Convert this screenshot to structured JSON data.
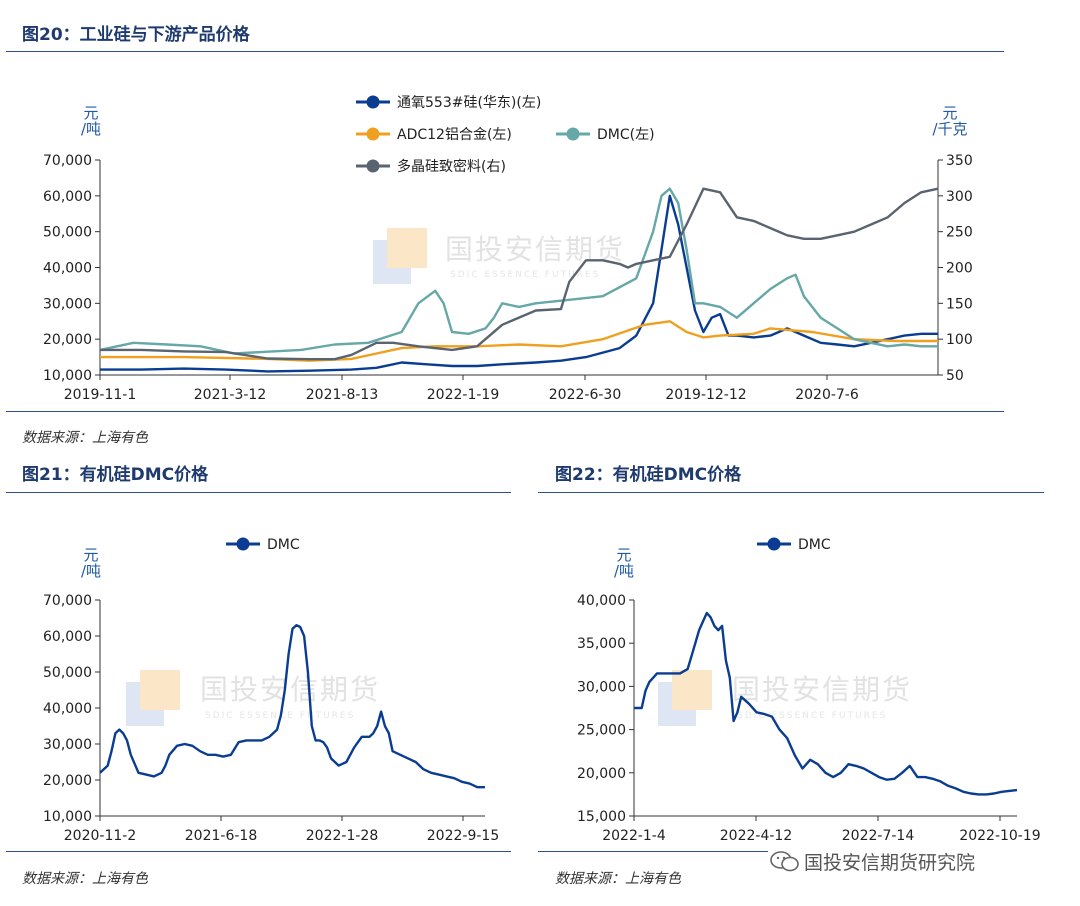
{
  "fig20": {
    "title": "图20：工业硅与下游产品价格",
    "left_unit": "元\n/吨",
    "right_unit": "元\n/千克",
    "source": "数据来源：上海有色",
    "chart_data": {
      "type": "line",
      "title": "图20：工业硅与下游产品价格",
      "x_tick_labels": [
        "2019-11-1",
        "2021-3-12",
        "2021-8-13",
        "2022-1-19",
        "2022-6-30",
        "2019-12-12",
        "2020-7-6"
      ],
      "y_left_ticks": [
        "10,000",
        "20,000",
        "30,000",
        "40,000",
        "50,000",
        "60,000",
        "70,000"
      ],
      "y_right_ticks": [
        "50",
        "100",
        "150",
        "200",
        "250",
        "300",
        "350"
      ],
      "ylim_left": [
        10000,
        70000
      ],
      "ylim_right": [
        50,
        350
      ],
      "x_range": [
        0,
        100
      ],
      "series": [
        {
          "name": "通氧553#硅(华东)(左)",
          "axis": "left",
          "color": "#0a3d91",
          "x": [
            0,
            5,
            10,
            15,
            20,
            25,
            30,
            33,
            36,
            39,
            42,
            45,
            48,
            52,
            55,
            58,
            62,
            64,
            66,
            67,
            68,
            69,
            70,
            71,
            72,
            73,
            74,
            75,
            76,
            78,
            80,
            82,
            84,
            86,
            88,
            90,
            92,
            94,
            96,
            98,
            100
          ],
          "y": [
            11500,
            11500,
            11800,
            11500,
            11000,
            11200,
            11500,
            12000,
            13500,
            13000,
            12500,
            12500,
            13000,
            13500,
            14000,
            15000,
            17500,
            21000,
            30000,
            45000,
            60000,
            52000,
            40000,
            28000,
            22000,
            26000,
            27000,
            21000,
            21000,
            20500,
            21000,
            23000,
            21000,
            19000,
            18500,
            18000,
            19000,
            20000,
            21000,
            21500,
            21500
          ]
        },
        {
          "name": "ADC12铝合金(左)",
          "axis": "left",
          "color": "#f0a020",
          "x": [
            0,
            10,
            20,
            25,
            30,
            33,
            36,
            40,
            45,
            50,
            55,
            60,
            65,
            68,
            70,
            72,
            74,
            78,
            80,
            85,
            90,
            95,
            100
          ],
          "y": [
            15000,
            15000,
            14500,
            14000,
            14500,
            16000,
            17500,
            18000,
            18000,
            18500,
            18000,
            20000,
            24000,
            25000,
            22000,
            20500,
            21000,
            21500,
            23000,
            22000,
            20000,
            19500,
            19500
          ]
        },
        {
          "name": "DMC(左)",
          "axis": "left",
          "color": "#66a7a8",
          "x": [
            0,
            4,
            8,
            12,
            16,
            20,
            24,
            28,
            32,
            36,
            38,
            40,
            41,
            42,
            44,
            46,
            47,
            48,
            50,
            52,
            56,
            60,
            64,
            66,
            67,
            68,
            69,
            70,
            71,
            72,
            74,
            76,
            78,
            80,
            82,
            83,
            84,
            86,
            88,
            90,
            92,
            94,
            96,
            98,
            100
          ],
          "y": [
            17000,
            19000,
            18500,
            18000,
            16000,
            16500,
            17000,
            18500,
            19000,
            22000,
            30000,
            33500,
            30000,
            22000,
            21500,
            23000,
            26000,
            30000,
            29000,
            30000,
            31000,
            32000,
            37000,
            50000,
            60000,
            62000,
            58000,
            45000,
            30000,
            30000,
            29000,
            26000,
            30000,
            34000,
            37000,
            38000,
            32000,
            26000,
            23000,
            20000,
            19000,
            18000,
            18500,
            18000,
            18000
          ]
        },
        {
          "name": "多晶硅致密料(右)",
          "axis": "right",
          "color": "#5a6470",
          "x": [
            0,
            5,
            10,
            15,
            20,
            25,
            28,
            30,
            33,
            35,
            38,
            42,
            45,
            48,
            52,
            55,
            56,
            58,
            60,
            62,
            63,
            64,
            66,
            68,
            70,
            72,
            74,
            76,
            78,
            80,
            82,
            84,
            86,
            88,
            90,
            92,
            94,
            96,
            98,
            100
          ],
          "y": [
            85,
            85,
            83,
            82,
            73,
            72,
            72,
            78,
            95,
            95,
            90,
            85,
            90,
            120,
            140,
            142,
            180,
            210,
            210,
            205,
            200,
            205,
            210,
            215,
            260,
            310,
            305,
            270,
            265,
            255,
            245,
            240,
            240,
            245,
            250,
            260,
            270,
            290,
            305,
            310
          ]
        }
      ]
    }
  },
  "fig21": {
    "title": "图21：有机硅DMC价格",
    "unit": "元\n/吨",
    "source": "数据来源：上海有色",
    "chart_data": {
      "type": "line",
      "title": "图21：有机硅DMC价格",
      "x_tick_labels": [
        "2020-11-2",
        "2021-6-18",
        "2022-1-28",
        "2022-9-15"
      ],
      "y_ticks": [
        "10,000",
        "20,000",
        "30,000",
        "40,000",
        "50,000",
        "60,000",
        "70,000"
      ],
      "ylim": [
        10000,
        70000
      ],
      "x_range": [
        0,
        100
      ],
      "series": [
        {
          "name": "DMC",
          "color": "#0a3d91",
          "x": [
            0,
            2,
            3,
            4,
            5,
            6,
            7,
            8,
            10,
            12,
            14,
            16,
            17,
            18,
            20,
            22,
            24,
            26,
            28,
            30,
            32,
            34,
            36,
            38,
            40,
            42,
            44,
            46,
            47,
            48,
            49,
            50,
            51,
            52,
            53,
            54,
            55,
            56,
            57,
            58,
            59,
            60,
            62,
            64,
            66,
            68,
            70,
            71,
            72,
            73,
            74,
            75,
            76,
            78,
            80,
            82,
            84,
            86,
            88,
            90,
            92,
            94,
            96,
            98,
            100
          ],
          "y": [
            22000,
            24000,
            28000,
            33000,
            34000,
            33000,
            31000,
            27000,
            22000,
            21500,
            21000,
            22000,
            24000,
            27000,
            29500,
            30000,
            29500,
            28000,
            27000,
            27000,
            26500,
            27000,
            30500,
            31000,
            31000,
            31000,
            32000,
            34000,
            38000,
            45000,
            55000,
            62000,
            63000,
            62500,
            60000,
            50000,
            35000,
            31000,
            31000,
            30500,
            29000,
            26000,
            24000,
            25000,
            29000,
            32000,
            32000,
            33000,
            35000,
            39000,
            35000,
            33000,
            28000,
            27000,
            26000,
            25000,
            23000,
            22000,
            21500,
            21000,
            20500,
            19500,
            19000,
            18000,
            18000
          ]
        }
      ]
    }
  },
  "fig22": {
    "title": "图22：有机硅DMC价格",
    "unit": "元\n/吨",
    "source": "数据来源：上海有色",
    "credit": "国投安信期货研究院",
    "chart_data": {
      "type": "line",
      "title": "图22：有机硅DMC价格",
      "x_tick_labels": [
        "2022-1-4",
        "2022-4-12",
        "2022-7-14",
        "2022-10-19"
      ],
      "y_ticks": [
        "15,000",
        "20,000",
        "25,000",
        "30,000",
        "35,000",
        "40,000"
      ],
      "ylim": [
        15000,
        40000
      ],
      "x_range": [
        0,
        100
      ],
      "series": [
        {
          "name": "DMC",
          "color": "#0a3d91",
          "x": [
            0,
            2,
            3,
            4,
            6,
            8,
            10,
            12,
            14,
            15,
            16,
            17,
            18,
            19,
            20,
            21,
            22,
            23,
            24,
            25,
            26,
            27,
            28,
            30,
            32,
            34,
            36,
            38,
            40,
            42,
            44,
            46,
            48,
            50,
            52,
            54,
            56,
            58,
            60,
            62,
            64,
            66,
            68,
            70,
            72,
            74,
            76,
            78,
            80,
            82,
            84,
            86,
            88,
            90,
            92,
            94,
            96,
            98,
            100
          ],
          "y": [
            27500,
            27500,
            29500,
            30500,
            31500,
            31500,
            31500,
            31500,
            32000,
            33500,
            35000,
            36500,
            37500,
            38500,
            38000,
            37000,
            36500,
            37000,
            33000,
            31000,
            26000,
            27000,
            28800,
            28000,
            27000,
            26800,
            26500,
            25000,
            24000,
            22000,
            20500,
            21500,
            21000,
            20000,
            19500,
            20000,
            21000,
            20800,
            20500,
            20000,
            19500,
            19200,
            19300,
            20000,
            20800,
            19500,
            19500,
            19300,
            19000,
            18500,
            18200,
            17800,
            17600,
            17500,
            17500,
            17600,
            17800,
            17900,
            18000
          ]
        }
      ]
    }
  },
  "watermark": {
    "name": "国投安信期货",
    "sub": "SDIC ESSENCE FUTURES"
  }
}
